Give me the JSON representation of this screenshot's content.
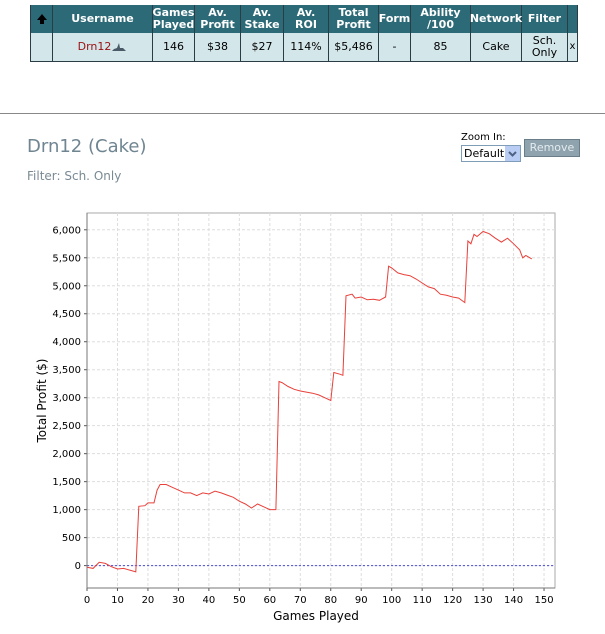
{
  "table": {
    "header": [
      "Username",
      "Games Played",
      "Av. Profit",
      "Av. Stake",
      "Av. ROI",
      "Total Profit",
      "Form",
      "Ability /100",
      "Network",
      "Filter"
    ],
    "rows": [
      [
        "Drn12",
        "146",
        "$38",
        "$27",
        "114%",
        "$5,486",
        "-",
        "85",
        "Cake",
        "Sch. Only"
      ]
    ],
    "remove_link": "x"
  },
  "panel": {
    "title": "Drn12 (Cake)",
    "filter": "Filter: Sch. Only",
    "zoom_label": "Zoom In:",
    "zoom_value": "Default",
    "remove_button": "Remove"
  },
  "chart_data": {
    "type": "line",
    "x_label": "Games Played",
    "y_label": "Total Profit ($)",
    "color": "#e8403a",
    "grid": true,
    "x": [
      0,
      2,
      4,
      6,
      8,
      10,
      12,
      14,
      16,
      17,
      19,
      20,
      22,
      23,
      24,
      26,
      28,
      30,
      32,
      34,
      36,
      38,
      40,
      42,
      44,
      46,
      48,
      50,
      52,
      54,
      56,
      58,
      60,
      62,
      63,
      64,
      66,
      68,
      70,
      72,
      74,
      76,
      78,
      80,
      81,
      83,
      84,
      85,
      87,
      88,
      90,
      92,
      94,
      96,
      98,
      99,
      100,
      102,
      104,
      106,
      108,
      110,
      112,
      114,
      116,
      118,
      120,
      122,
      124,
      125,
      126,
      127,
      128,
      130,
      132,
      134,
      136,
      138,
      140,
      142,
      143,
      144,
      146
    ],
    "values": [
      -30,
      -50,
      60,
      40,
      -20,
      -60,
      -50,
      -80,
      -110,
      1060,
      1070,
      1120,
      1120,
      1350,
      1450,
      1450,
      1400,
      1350,
      1300,
      1300,
      1250,
      1300,
      1280,
      1330,
      1300,
      1260,
      1220,
      1150,
      1100,
      1030,
      1100,
      1050,
      1000,
      1000,
      3290,
      3270,
      3200,
      3150,
      3120,
      3100,
      3080,
      3050,
      3000,
      2950,
      3450,
      3420,
      3400,
      4820,
      4850,
      4780,
      4800,
      4750,
      4760,
      4740,
      4800,
      5350,
      5320,
      5230,
      5200,
      5180,
      5120,
      5050,
      4980,
      4950,
      4850,
      4830,
      4800,
      4780,
      4700,
      5800,
      5750,
      5920,
      5880,
      5970,
      5930,
      5850,
      5780,
      5850,
      5750,
      5640,
      5500,
      5540,
      5480
    ],
    "xlim": [
      0,
      153.6
    ],
    "ylim": [
      -400,
      6300
    ],
    "xticks": [
      0,
      10,
      20,
      30,
      40,
      50,
      60,
      70,
      80,
      90,
      100,
      110,
      120,
      130,
      140,
      150
    ],
    "yticks": [
      0,
      500,
      {
        "value": 1000,
        "label": "1,000"
      },
      {
        "value": 1500,
        "label": "1,500"
      },
      {
        "value": 2000,
        "label": "2,000"
      },
      {
        "value": 2500,
        "label": "2,500"
      },
      {
        "value": 3000,
        "label": "3,000"
      },
      {
        "value": 3500,
        "label": "3,500"
      },
      {
        "value": 4000,
        "label": "4,000"
      },
      {
        "value": 4500,
        "label": "4,500"
      },
      {
        "value": 5000,
        "label": "5,000"
      },
      {
        "value": 5500,
        "label": "5,500"
      },
      {
        "value": 6000,
        "label": "6,000"
      }
    ]
  }
}
